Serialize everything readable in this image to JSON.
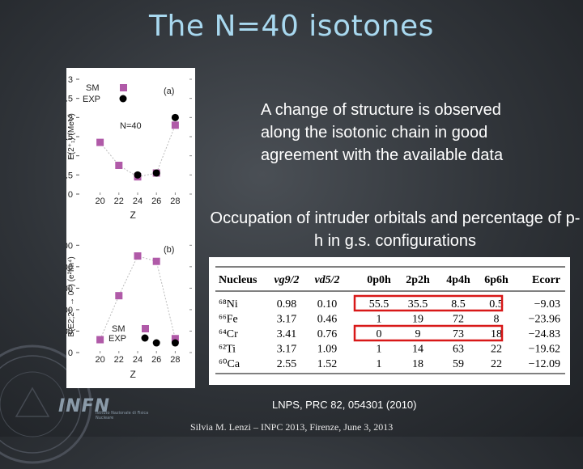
{
  "slide": {
    "title": "The N=40 isotones",
    "description": "A change of structure is observed along the isotonic chain in good agreement with the available data",
    "occupation_text": "Occupation of intruder orbitals and percentage of p-h in g.s. configurations",
    "reference": "LNPS, PRC 82, 054301 (2010)",
    "footer": "Silvia  M. Lenzi –  INPC 2013, Firenze, June 3, 2013",
    "logo_text": "INFN",
    "logo_subtext": "Istituto Nazionale di Fisica Nucleare"
  },
  "colors": {
    "title": "#a8d8ef",
    "sm_marker": "#b05aa8",
    "exp_marker": "#000000",
    "highlight_box": "#d81818"
  },
  "chart_data": [
    {
      "type": "scatter",
      "panel_label": "(a)",
      "annotation": "N=40",
      "ylabel": "E(2⁺₁) (MeV)",
      "xlabel": "Z",
      "x_ticks": [
        "20",
        "22",
        "24",
        "26",
        "28"
      ],
      "y_ticks": [
        "0",
        "0.5",
        "1",
        "1.5",
        "2",
        "2.5",
        "3"
      ],
      "xlim": [
        19,
        29
      ],
      "ylim": [
        0,
        3
      ],
      "legend": [
        "SM",
        "EXP"
      ],
      "series": [
        {
          "name": "SM",
          "x": [
            20,
            22,
            24,
            26,
            28
          ],
          "y": [
            1.35,
            0.75,
            0.45,
            0.55,
            1.8
          ]
        },
        {
          "name": "EXP",
          "x": [
            24,
            26,
            28
          ],
          "y": [
            0.5,
            0.55,
            2.0
          ]
        }
      ]
    },
    {
      "type": "scatter",
      "panel_label": "(b)",
      "ylabel": "B(E2;2⁺ → 0⁺) (e²fm⁴)",
      "xlabel": "Z",
      "x_ticks": [
        "20",
        "22",
        "24",
        "26",
        "28"
      ],
      "y_ticks": [
        "0",
        "100",
        "200",
        "300",
        "400",
        "500"
      ],
      "xlim": [
        19,
        29
      ],
      "ylim": [
        0,
        520
      ],
      "legend": [
        "SM",
        "EXP"
      ],
      "series": [
        {
          "name": "SM",
          "x": [
            20,
            22,
            24,
            26,
            28
          ],
          "y": [
            60,
            265,
            450,
            425,
            65
          ]
        },
        {
          "name": "EXP",
          "x": [
            26,
            28
          ],
          "y": [
            45,
            45
          ]
        }
      ]
    }
  ],
  "table": {
    "headers": [
      "Nucleus",
      "νg9/2",
      "νd5/2",
      "0p0h",
      "2p2h",
      "4p4h",
      "6p6h",
      "Ecorr"
    ],
    "rows": [
      {
        "nucleus": "⁶⁸Ni",
        "cells": [
          "0.98",
          "0.10",
          "55.5",
          "35.5",
          "8.5",
          "0.5",
          "−9.03"
        ]
      },
      {
        "nucleus": "⁶⁶Fe",
        "cells": [
          "3.17",
          "0.46",
          "1",
          "19",
          "72",
          "8",
          "−23.96"
        ]
      },
      {
        "nucleus": "⁶⁴Cr",
        "cells": [
          "3.41",
          "0.76",
          "0",
          "9",
          "73",
          "18",
          "−24.83"
        ]
      },
      {
        "nucleus": "⁶²Ti",
        "cells": [
          "3.17",
          "1.09",
          "1",
          "14",
          "63",
          "22",
          "−19.62"
        ]
      },
      {
        "nucleus": "⁶⁰Ca",
        "cells": [
          "2.55",
          "1.52",
          "1",
          "18",
          "59",
          "22",
          "−12.09"
        ]
      }
    ]
  }
}
